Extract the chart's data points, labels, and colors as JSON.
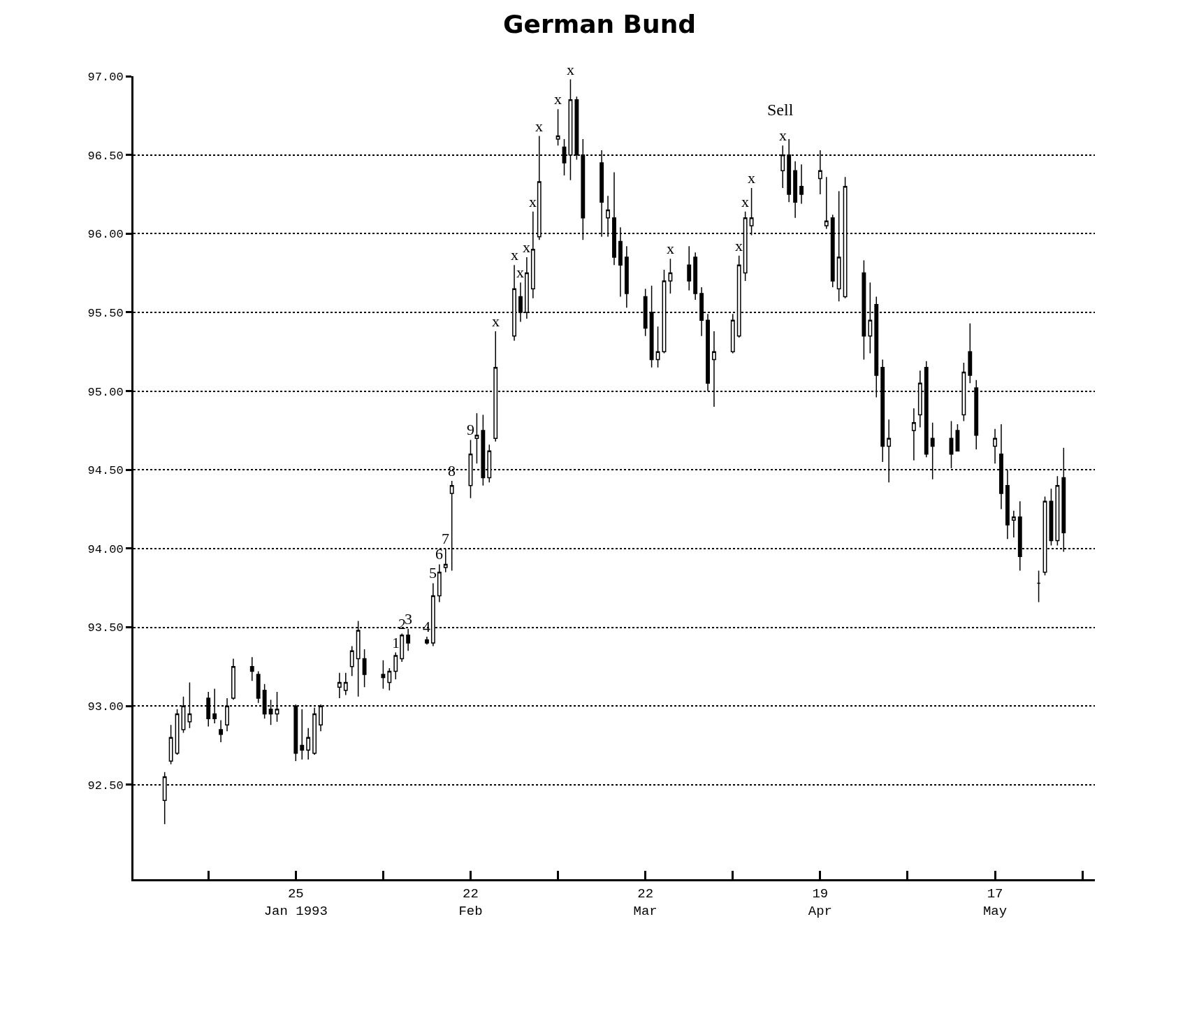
{
  "chart_data": {
    "type": "candlestick",
    "title": "German Bund",
    "x": [
      "1993-01-04",
      "1993-01-05",
      "1993-01-06",
      "1993-01-07",
      "1993-01-08",
      "1993-01-11",
      "1993-01-12",
      "1993-01-13",
      "1993-01-14",
      "1993-01-15",
      "1993-01-18",
      "1993-01-19",
      "1993-01-20",
      "1993-01-21",
      "1993-01-22",
      "1993-01-25",
      "1993-01-26",
      "1993-01-27",
      "1993-01-28",
      "1993-01-29",
      "1993-02-01",
      "1993-02-02",
      "1993-02-03",
      "1993-02-04",
      "1993-02-05",
      "1993-02-08",
      "1993-02-09",
      "1993-02-10",
      "1993-02-11",
      "1993-02-12",
      "1993-02-15",
      "1993-02-16",
      "1993-02-17",
      "1993-02-18",
      "1993-02-19",
      "1993-02-22",
      "1993-02-23",
      "1993-02-24",
      "1993-02-25",
      "1993-02-26",
      "1993-03-01",
      "1993-03-02",
      "1993-03-03",
      "1993-03-04",
      "1993-03-05",
      "1993-03-08",
      "1993-03-09",
      "1993-03-10",
      "1993-03-11",
      "1993-03-12",
      "1993-03-15",
      "1993-03-16",
      "1993-03-17",
      "1993-03-18",
      "1993-03-19",
      "1993-03-22",
      "1993-03-23",
      "1993-03-24",
      "1993-03-25",
      "1993-03-26",
      "1993-03-29",
      "1993-03-30",
      "1993-03-31",
      "1993-04-01",
      "1993-04-02",
      "1993-04-05",
      "1993-04-06",
      "1993-04-07",
      "1993-04-08",
      "1993-04-13",
      "1993-04-14",
      "1993-04-15",
      "1993-04-16",
      "1993-04-19",
      "1993-04-20",
      "1993-04-21",
      "1993-04-22",
      "1993-04-23",
      "1993-04-26",
      "1993-04-27",
      "1993-04-28",
      "1993-04-29",
      "1993-04-30",
      "1993-05-04",
      "1993-05-05",
      "1993-05-06",
      "1993-05-07",
      "1993-05-10",
      "1993-05-11",
      "1993-05-12",
      "1993-05-13",
      "1993-05-14",
      "1993-05-17",
      "1993-05-18",
      "1993-05-19",
      "1993-05-20",
      "1993-05-21",
      "1993-05-24",
      "1993-05-25",
      "1993-05-26",
      "1993-05-27",
      "1993-05-28"
    ],
    "ohlc": [
      [
        92.4,
        92.58,
        92.25,
        92.55
      ],
      [
        92.65,
        92.88,
        92.63,
        92.8
      ],
      [
        92.7,
        92.98,
        92.69,
        92.95
      ],
      [
        92.85,
        93.06,
        92.83,
        93.0
      ],
      [
        92.9,
        93.15,
        92.86,
        92.95
      ],
      [
        93.05,
        93.09,
        92.87,
        92.92
      ],
      [
        92.95,
        93.11,
        92.89,
        92.92
      ],
      [
        92.85,
        92.91,
        92.77,
        92.82
      ],
      [
        92.88,
        93.05,
        92.84,
        93.0
      ],
      [
        93.05,
        93.3,
        93.04,
        93.25
      ],
      [
        93.25,
        93.31,
        93.16,
        93.22
      ],
      [
        93.2,
        93.22,
        93.02,
        93.05
      ],
      [
        93.1,
        93.14,
        92.92,
        92.95
      ],
      [
        92.98,
        93.04,
        92.88,
        92.95
      ],
      [
        92.95,
        93.09,
        92.9,
        92.98
      ],
      [
        93.0,
        93.01,
        92.65,
        92.7
      ],
      [
        92.75,
        92.98,
        92.66,
        92.72
      ],
      [
        92.72,
        92.86,
        92.66,
        92.8
      ],
      [
        92.7,
        92.99,
        92.69,
        92.95
      ],
      [
        92.88,
        93.01,
        92.84,
        93.0
      ],
      [
        93.12,
        93.21,
        93.05,
        93.15
      ],
      [
        93.1,
        93.21,
        93.07,
        93.15
      ],
      [
        93.25,
        93.38,
        93.19,
        93.35
      ],
      [
        93.3,
        93.54,
        93.06,
        93.48
      ],
      [
        93.3,
        93.36,
        93.12,
        93.2
      ],
      [
        93.2,
        93.29,
        93.11,
        93.18
      ],
      [
        93.15,
        93.24,
        93.1,
        93.22
      ],
      [
        93.22,
        93.34,
        93.17,
        93.32
      ],
      [
        93.3,
        93.46,
        93.28,
        93.45
      ],
      [
        93.45,
        93.49,
        93.35,
        93.4
      ],
      [
        93.42,
        93.44,
        93.39,
        93.4
      ],
      [
        93.4,
        93.78,
        93.38,
        93.7
      ],
      [
        93.7,
        93.9,
        93.66,
        93.85
      ],
      [
        93.88,
        94.0,
        93.85,
        93.9
      ],
      [
        94.35,
        94.43,
        93.86,
        94.4
      ],
      [
        94.4,
        94.69,
        94.32,
        94.6
      ],
      [
        94.7,
        94.86,
        94.54,
        94.72
      ],
      [
        94.75,
        94.85,
        94.4,
        94.45
      ],
      [
        94.45,
        94.66,
        94.42,
        94.62
      ],
      [
        94.7,
        95.38,
        94.68,
        95.15
      ],
      [
        95.35,
        95.8,
        95.32,
        95.65
      ],
      [
        95.6,
        95.69,
        95.44,
        95.5
      ],
      [
        95.5,
        95.85,
        95.46,
        95.75
      ],
      [
        95.65,
        96.14,
        95.59,
        95.9
      ],
      [
        95.98,
        96.62,
        95.96,
        96.33
      ],
      [
        96.6,
        96.79,
        96.56,
        96.62
      ],
      [
        96.55,
        96.6,
        96.37,
        96.45
      ],
      [
        96.5,
        96.98,
        96.34,
        96.85
      ],
      [
        96.85,
        96.87,
        96.47,
        96.5
      ],
      [
        96.5,
        96.6,
        95.96,
        96.1
      ],
      [
        96.45,
        96.53,
        95.98,
        96.2
      ],
      [
        96.1,
        96.24,
        95.98,
        96.15
      ],
      [
        96.1,
        96.39,
        95.8,
        95.85
      ],
      [
        95.95,
        96.04,
        95.6,
        95.8
      ],
      [
        95.85,
        95.92,
        95.53,
        95.62
      ],
      [
        95.6,
        95.65,
        95.35,
        95.4
      ],
      [
        95.5,
        95.67,
        95.15,
        95.2
      ],
      [
        95.2,
        95.41,
        95.15,
        95.25
      ],
      [
        95.25,
        95.77,
        95.24,
        95.7
      ],
      [
        95.7,
        95.84,
        95.62,
        95.75
      ],
      [
        95.8,
        95.92,
        95.64,
        95.7
      ],
      [
        95.85,
        95.88,
        95.58,
        95.62
      ],
      [
        95.62,
        95.66,
        95.35,
        95.45
      ],
      [
        95.45,
        95.49,
        95.0,
        95.05
      ],
      [
        95.2,
        95.38,
        94.9,
        95.25
      ],
      [
        95.25,
        95.49,
        95.24,
        95.45
      ],
      [
        95.35,
        95.86,
        95.34,
        95.8
      ],
      [
        95.75,
        96.14,
        95.7,
        96.1
      ],
      [
        96.05,
        96.29,
        95.99,
        96.1
      ],
      [
        96.4,
        96.56,
        96.29,
        96.5
      ],
      [
        96.5,
        96.6,
        96.2,
        96.25
      ],
      [
        96.4,
        96.46,
        96.1,
        96.2
      ],
      [
        96.3,
        96.44,
        96.19,
        96.25
      ],
      [
        96.35,
        96.53,
        96.25,
        96.4
      ],
      [
        96.05,
        96.36,
        96.03,
        96.08
      ],
      [
        96.1,
        96.12,
        95.66,
        95.7
      ],
      [
        95.65,
        96.27,
        95.57,
        95.85
      ],
      [
        95.6,
        96.36,
        95.59,
        96.3
      ],
      [
        95.75,
        95.83,
        95.2,
        95.35
      ],
      [
        95.35,
        95.69,
        95.24,
        95.45
      ],
      [
        95.55,
        95.6,
        94.96,
        95.1
      ],
      [
        95.15,
        95.2,
        94.55,
        94.65
      ],
      [
        94.65,
        94.82,
        94.42,
        94.7
      ],
      [
        94.75,
        94.89,
        94.56,
        94.8
      ],
      [
        94.85,
        95.13,
        94.77,
        95.05
      ],
      [
        95.15,
        95.19,
        94.58,
        94.6
      ],
      [
        94.7,
        94.8,
        94.44,
        94.65
      ],
      [
        94.7,
        94.81,
        94.51,
        94.6
      ],
      [
        94.75,
        94.79,
        94.62,
        94.62
      ],
      [
        94.85,
        95.18,
        94.81,
        95.12
      ],
      [
        95.25,
        95.43,
        95.05,
        95.1
      ],
      [
        95.02,
        95.07,
        94.63,
        94.72
      ],
      [
        94.65,
        94.76,
        94.54,
        94.7
      ],
      [
        94.6,
        94.79,
        94.25,
        94.35
      ],
      [
        94.4,
        94.5,
        94.06,
        94.15
      ],
      [
        94.18,
        94.24,
        94.07,
        94.2
      ],
      [
        94.2,
        94.3,
        93.86,
        93.95
      ],
      [
        93.78,
        93.86,
        93.66,
        93.78
      ],
      [
        93.85,
        94.33,
        93.83,
        94.3
      ],
      [
        94.3,
        94.38,
        94.02,
        94.05
      ],
      [
        94.05,
        94.46,
        94.02,
        94.4
      ],
      [
        94.45,
        94.64,
        93.98,
        94.1
      ]
    ],
    "color": "#000000",
    "xlim": [
      "1992-12-30",
      "1993-06-02"
    ],
    "xticks": [
      {
        "value": "1993-01-11",
        "label": null
      },
      {
        "value": "1993-01-25",
        "label": "25\nJan 1993"
      },
      {
        "value": "1993-02-08",
        "label": null
      },
      {
        "value": "1993-02-22",
        "label": "22\nFeb"
      },
      {
        "value": "1993-03-08",
        "label": null
      },
      {
        "value": "1993-03-22",
        "label": "22\nMar"
      },
      {
        "value": "1993-04-05",
        "label": null
      },
      {
        "value": "1993-04-19",
        "label": "19\nApr"
      },
      {
        "value": "1993-05-03",
        "label": null
      },
      {
        "value": "1993-05-17",
        "label": "17\nMay"
      },
      {
        "value": "1993-05-31",
        "label": null
      }
    ],
    "ylim": [
      91.9,
      97.0
    ],
    "yticks": [
      {
        "value": 92.5,
        "label": "92.50"
      },
      {
        "value": 93,
        "label": "93.00"
      },
      {
        "value": 93.5,
        "label": "93.50"
      },
      {
        "value": 94,
        "label": "94.00"
      },
      {
        "value": 94.5,
        "label": "94.50"
      },
      {
        "value": 95,
        "label": "95.00"
      },
      {
        "value": 95.5,
        "label": "95.50"
      },
      {
        "value": 96,
        "label": "96.00"
      },
      {
        "value": 96.5,
        "label": "96.50"
      },
      {
        "value": 97,
        "label": "97.00"
      }
    ],
    "grid": "y",
    "annotations": [
      {
        "text": "1",
        "x": "1993-02-10",
        "y": 93.34
      },
      {
        "text": "2",
        "x": "1993-02-11",
        "y": 93.46
      },
      {
        "text": "3",
        "x": "1993-02-12",
        "y": 93.49
      },
      {
        "text": "4",
        "x": "1993-02-15",
        "y": 93.44
      },
      {
        "text": "5",
        "x": "1993-02-16",
        "y": 93.78
      },
      {
        "text": "6",
        "x": "1993-02-17",
        "y": 93.9
      },
      {
        "text": "7",
        "x": "1993-02-18",
        "y": 94.0
      },
      {
        "text": "8",
        "x": "1993-02-19",
        "y": 94.43
      },
      {
        "text": "9",
        "x": "1993-02-22",
        "y": 94.69
      },
      {
        "text": "x",
        "x": "1993-02-26",
        "y": 95.38
      },
      {
        "text": "x",
        "x": "1993-03-01",
        "y": 95.8
      },
      {
        "text": "x",
        "x": "1993-03-02",
        "y": 95.69
      },
      {
        "text": "x",
        "x": "1993-03-03",
        "y": 95.85
      },
      {
        "text": "x",
        "x": "1993-03-04",
        "y": 96.14
      },
      {
        "text": "x",
        "x": "1993-03-05",
        "y": 96.62
      },
      {
        "text": "x",
        "x": "1993-03-08",
        "y": 96.79
      },
      {
        "text": "x",
        "x": "1993-03-10",
        "y": 96.98
      },
      {
        "text": "x",
        "x": "1993-03-26",
        "y": 95.84
      },
      {
        "text": "x",
        "x": "1993-04-06",
        "y": 95.86
      },
      {
        "text": "x",
        "x": "1993-04-07",
        "y": 96.14
      },
      {
        "text": "x",
        "x": "1993-04-08",
        "y": 96.29
      },
      {
        "text": "x",
        "x": "1993-04-13",
        "y": 96.56
      },
      "Sell"
    ]
  }
}
